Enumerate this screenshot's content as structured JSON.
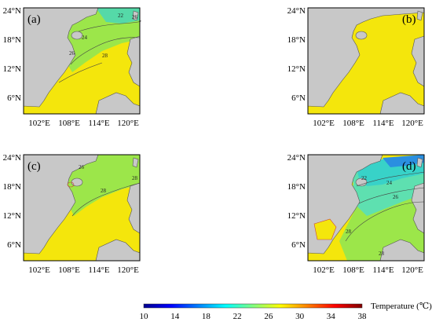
{
  "panels": [
    {
      "id": "a",
      "label": "(a)",
      "contours": [
        "22",
        "24",
        "26",
        "26",
        "28"
      ]
    },
    {
      "id": "b",
      "label": "(b)",
      "contours": []
    },
    {
      "id": "c",
      "label": "(c)",
      "contours": [
        "26",
        "28",
        "28"
      ]
    },
    {
      "id": "d",
      "label": "(d)",
      "contours": [
        "22",
        "24",
        "26",
        "28",
        "28"
      ]
    }
  ],
  "axes": {
    "lat_ticks": [
      "24°N",
      "18°N",
      "12°N",
      "6°N"
    ],
    "lon_ticks": [
      "102°E",
      "108°E",
      "114°E",
      "120°E"
    ]
  },
  "colorbar": {
    "ticks": [
      "10",
      "14",
      "18",
      "22",
      "26",
      "30",
      "34",
      "38"
    ],
    "label": "Temperature (℃)"
  },
  "colors": {
    "land": "#c8c8c8",
    "sea_warm": "#f4e60c",
    "sea_green": "#9ce64a",
    "sea_cyan": "#38d2c8",
    "sea_blue": "#2a8fe0"
  }
}
